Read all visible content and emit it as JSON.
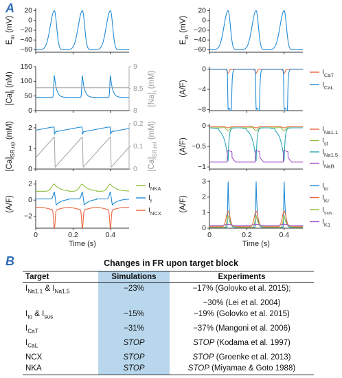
{
  "panel_labels": [
    "A",
    "B"
  ],
  "colors": {
    "blue": "#1f8ad6",
    "orange": "#e8643a",
    "green": "#8ebd3c",
    "purple": "#a354c8",
    "teal": "#2aa6b4",
    "gray": "#a8a8a8",
    "table_highlight": "#b9d7ec",
    "letter": "#2f6db5"
  },
  "chart_data": [
    {
      "type": "line",
      "id": "left-em",
      "ylabel": "Em (mV)",
      "ylim": [
        -65,
        25
      ],
      "yticks": [
        "20",
        "0",
        "−20",
        "−40",
        "−60"
      ],
      "yticks_values": [
        20,
        0,
        -20,
        -40,
        -60
      ],
      "xlim": [
        0,
        0.5
      ],
      "series": [
        {
          "style": "em",
          "color": "blue",
          "base": -60,
          "peak": 20,
          "spikes": [
            0.1,
            0.25,
            0.4
          ]
        }
      ]
    },
    {
      "type": "line",
      "id": "left-ca",
      "ylabel": "[Ca]i (nM)",
      "y2label": "[Na]i (mM)",
      "ylim": [
        0,
        150
      ],
      "yticks": [
        "150",
        "100",
        "50",
        "0"
      ],
      "yticks_values": [
        150,
        100,
        50,
        0
      ],
      "y2ticks": [
        "9",
        "8.5",
        "8"
      ],
      "xlim": [
        0,
        0.5
      ],
      "series": [
        {
          "style": "cai",
          "color": "blue",
          "base": 45,
          "peak": 120,
          "spikes": [
            0.1,
            0.25,
            0.4
          ]
        },
        {
          "style": "flat",
          "color": "gray",
          "value": 78
        }
      ]
    },
    {
      "type": "line",
      "id": "left-sr",
      "ylabel": "[Ca]SR,up (mM)",
      "y2label": "[Ca]SR,rel (mM)",
      "ylim": [
        0,
        2.2
      ],
      "yticks": [
        "2",
        "1",
        "0"
      ],
      "yticks_values": [
        2,
        1,
        0
      ],
      "y2ticks": [
        "0.2",
        "0.1",
        "0"
      ],
      "xlim": [
        0,
        0.5
      ],
      "series": [
        {
          "style": "srup",
          "color": "blue",
          "base": 1.85,
          "high": 2.1,
          "spikes": [
            0.1,
            0.25,
            0.4
          ]
        },
        {
          "style": "srrel",
          "color": "gray",
          "low": 0.05,
          "high": 1.55,
          "spikes": [
            0.1,
            0.25,
            0.4
          ]
        }
      ]
    },
    {
      "type": "line",
      "id": "left-currents",
      "ylabel": "(A/F)",
      "ylim": [
        -3.5,
        2.5
      ],
      "yticks": [
        "2",
        "0",
        "−2"
      ],
      "yticks_values": [
        2,
        0,
        -2
      ],
      "xlim": [
        0,
        0.5
      ],
      "xticks": [
        "0",
        "0.2",
        "0.4"
      ],
      "xticks_values": [
        0,
        0.2,
        0.4
      ],
      "xlabel": "Time (s)",
      "legend": [
        "INKA",
        "If",
        "INCX"
      ],
      "series": [
        {
          "name": "INKA",
          "style": "nka",
          "color": "green",
          "base": 1.1,
          "peak": 2.0,
          "spikes": [
            0.1,
            0.25,
            0.4
          ]
        },
        {
          "name": "If",
          "style": "if",
          "color": "blue",
          "base": 0.15,
          "peak": 1.0,
          "dip": -0.6,
          "spikes": [
            0.1,
            0.25,
            0.4
          ]
        },
        {
          "name": "INCX",
          "style": "ncx",
          "color": "orange",
          "base": -0.9,
          "min": -3.2,
          "spikes": [
            0.1,
            0.25,
            0.4
          ]
        }
      ]
    },
    {
      "type": "line",
      "id": "right-em",
      "ylabel": "Em (mV)",
      "ylim": [
        -65,
        25
      ],
      "yticks": [
        "20",
        "0",
        "−20",
        "−40",
        "−60"
      ],
      "yticks_values": [
        20,
        0,
        -20,
        -40,
        -60
      ],
      "xlim": [
        0,
        0.5
      ],
      "series": [
        {
          "style": "em",
          "color": "blue",
          "base": -60,
          "peak": 20,
          "spikes": [
            0.1,
            0.25,
            0.4
          ]
        }
      ]
    },
    {
      "type": "line",
      "id": "right-ca-currents",
      "ylabel": "(A/F)",
      "ylim": [
        -8.2,
        0.5
      ],
      "yticks": [
        "0",
        "−4",
        "−8"
      ],
      "yticks_values": [
        0,
        -4,
        -8
      ],
      "xlim": [
        0,
        0.5
      ],
      "legend": [
        "ICaT",
        "ICaL"
      ],
      "series": [
        {
          "name": "ICaT",
          "style": "cat",
          "color": "orange",
          "base": 0,
          "min": -0.8,
          "spikes": [
            0.1,
            0.25,
            0.4
          ]
        },
        {
          "name": "ICaL",
          "style": "cal",
          "color": "blue",
          "base": 0,
          "min": -8.0,
          "spikes": [
            0.1,
            0.25,
            0.4
          ]
        }
      ]
    },
    {
      "type": "line",
      "id": "right-na-currents",
      "ylabel": "(A/F)",
      "ylim": [
        -1.05,
        0.05
      ],
      "yticks": [
        "0",
        "−0.5",
        "−1"
      ],
      "yticks_values": [
        0,
        -0.5,
        -1
      ],
      "xlim": [
        0,
        0.5
      ],
      "legend": [
        "INa1.1",
        "Ist",
        "INa1.5",
        "INaB"
      ],
      "series": [
        {
          "name": "INa1.1",
          "style": "na11",
          "color": "orange",
          "base": -0.02,
          "min": -0.05,
          "spikes": [
            0.1,
            0.25,
            0.4
          ]
        },
        {
          "name": "Ist",
          "style": "ist",
          "color": "green",
          "base": -0.03,
          "min": -0.12,
          "spikes": [
            0.1,
            0.25,
            0.4
          ]
        },
        {
          "name": "INa1.5",
          "style": "na15",
          "color": "teal",
          "base": -0.05,
          "min": -0.85,
          "spikes": [
            0.1,
            0.25,
            0.4
          ]
        },
        {
          "name": "INaB",
          "style": "nab",
          "color": "purple",
          "base": -0.88,
          "high": -0.6,
          "spikes": [
            0.1,
            0.25,
            0.4
          ]
        }
      ]
    },
    {
      "type": "line",
      "id": "right-k-currents",
      "ylabel": "(A/F)",
      "ylim": [
        0,
        3.1
      ],
      "yticks": [
        "3",
        "2",
        "1",
        "0"
      ],
      "yticks_values": [
        3,
        2,
        1,
        0
      ],
      "xlim": [
        0,
        0.5
      ],
      "xticks": [
        "0",
        "0.2",
        "0.4"
      ],
      "xticks_values": [
        0,
        0.2,
        0.4
      ],
      "xlabel": "Time (s)",
      "legend": [
        "Ito",
        "IKr",
        "Isus",
        "IK1"
      ],
      "series": [
        {
          "name": "Ito",
          "style": "ito",
          "color": "blue",
          "base": 0.05,
          "peak": 3.0,
          "spikes": [
            0.1,
            0.25,
            0.4
          ]
        },
        {
          "name": "IKr",
          "style": "ikr",
          "color": "orange",
          "base": 0.1,
          "peak": 1.1,
          "spikes": [
            0.1,
            0.25,
            0.4
          ]
        },
        {
          "name": "Isus",
          "style": "isus",
          "color": "green",
          "base": 0.05,
          "peak": 0.8,
          "spikes": [
            0.1,
            0.25,
            0.4
          ]
        },
        {
          "name": "IK1",
          "style": "ik1",
          "color": "purple",
          "base": 0.15,
          "peak": 0.25,
          "spikes": [
            0.1,
            0.25,
            0.4
          ]
        }
      ]
    }
  ],
  "table": {
    "title": "Changes in FR upon target block",
    "headers": [
      "Target",
      "Simulations",
      "Experiments"
    ],
    "rows": [
      {
        "target": "INa1.1 & INa1.5",
        "sim": "−23%",
        "exp": "−17% (Golovko et al. 2015);"
      },
      {
        "target": "",
        "sim": "",
        "exp": "−30% (Lei et al. 2004)"
      },
      {
        "target": "Ito & Isus",
        "sim": "−15%",
        "exp": "−19% (Golovko et al. 2015)"
      },
      {
        "target": "ICaT",
        "sim": "−31%",
        "exp": "−37% (Mangoni et al. 2006)"
      },
      {
        "target": "ICaL",
        "sim": "STOP",
        "exp": "STOP (Kodama et al. 1997)"
      },
      {
        "target": "NCX",
        "sim": "STOP",
        "exp": "STOP (Groenke et al. 2013)"
      },
      {
        "target": "NKA",
        "sim": "STOP",
        "exp": "STOP (Miyamae & Goto 1988)"
      }
    ]
  }
}
